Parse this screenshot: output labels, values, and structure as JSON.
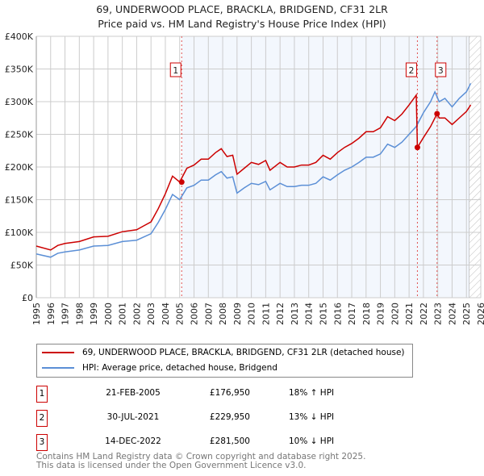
{
  "chart_data": {
    "type": "line",
    "title": "69, UNDERWOOD PLACE, BRACKLA, BRIDGEND, CF31 2LR",
    "subtitle": "Price paid vs. HM Land Registry's House Price Index (HPI)",
    "xlim": [
      1995,
      2026
    ],
    "ylim": [
      0,
      400000
    ],
    "x_ticks": [
      "1995",
      "1996",
      "1997",
      "1998",
      "1999",
      "2000",
      "2001",
      "2002",
      "2003",
      "2004",
      "2005",
      "2006",
      "2007",
      "2008",
      "2009",
      "2010",
      "2011",
      "2012",
      "2013",
      "2014",
      "2015",
      "2016",
      "2017",
      "2018",
      "2019",
      "2020",
      "2021",
      "2022",
      "2023",
      "2024",
      "2025",
      "2026"
    ],
    "y_ticks": [
      {
        "v": 0,
        "label": "£0"
      },
      {
        "v": 50000,
        "label": "£50K"
      },
      {
        "v": 100000,
        "label": "£100K"
      },
      {
        "v": 150000,
        "label": "£150K"
      },
      {
        "v": 200000,
        "label": "£200K"
      },
      {
        "v": 250000,
        "label": "£250K"
      },
      {
        "v": 300000,
        "label": "£300K"
      },
      {
        "v": 350000,
        "label": "£350K"
      },
      {
        "v": 400000,
        "label": "£400K"
      }
    ],
    "grid": true,
    "series": [
      {
        "name": "69, UNDERWOOD PLACE, BRACKLA, BRIDGEND, CF31 2LR (detached house)",
        "color": "#cc0000",
        "x": [
          1995,
          1996,
          1996.5,
          1997,
          1998,
          1999,
          2000,
          2001,
          2002,
          2002.5,
          2003,
          2003.5,
          2004,
          2004.5,
          2005,
          2005.5,
          2006,
          2006.5,
          2007,
          2007.5,
          2007.9,
          2008.3,
          2008.7,
          2009,
          2009.5,
          2010,
          2010.5,
          2011,
          2011.3,
          2012,
          2012.5,
          2013,
          2013.5,
          2014,
          2014.5,
          2015,
          2015.5,
          2016,
          2016.5,
          2017,
          2017.5,
          2018,
          2018.5,
          2019,
          2019.5,
          2020,
          2020.5,
          2021,
          2021.5,
          2021.58,
          2022,
          2022.5,
          2022.95,
          2023.1,
          2023.5,
          2024,
          2024.5,
          2025,
          2025.3
        ],
        "y": [
          79000,
          73000,
          80000,
          83000,
          86000,
          93000,
          94000,
          101000,
          104000,
          110000,
          116000,
          136000,
          159000,
          186000,
          177000,
          198000,
          203000,
          212000,
          212000,
          222000,
          228000,
          216000,
          218000,
          189000,
          198000,
          207000,
          204000,
          210000,
          195000,
          207000,
          200000,
          200000,
          203000,
          203000,
          207000,
          218000,
          212000,
          222000,
          230000,
          236000,
          244000,
          254000,
          254000,
          260000,
          277000,
          271000,
          281000,
          295000,
          310000,
          229950,
          245000,
          262000,
          281500,
          275000,
          275000,
          265000,
          275000,
          285000,
          295000
        ]
      },
      {
        "name": "HPI: Average price, detached house, Bridgend",
        "color": "#5b8fd6",
        "x": [
          1995,
          1996,
          1996.5,
          1997,
          1998,
          1999,
          2000,
          2001,
          2002,
          2002.5,
          2003,
          2003.5,
          2004,
          2004.5,
          2005,
          2005.5,
          2006,
          2006.5,
          2007,
          2007.5,
          2007.9,
          2008.3,
          2008.7,
          2009,
          2009.5,
          2010,
          2010.5,
          2011,
          2011.3,
          2012,
          2012.5,
          2013,
          2013.5,
          2014,
          2014.5,
          2015,
          2015.5,
          2016,
          2016.5,
          2017,
          2017.5,
          2018,
          2018.5,
          2019,
          2019.5,
          2020,
          2020.5,
          2021,
          2021.5,
          2022,
          2022.5,
          2022.8,
          2023.1,
          2023.5,
          2024,
          2024.5,
          2025,
          2025.3
        ],
        "y": [
          67000,
          62000,
          68000,
          70000,
          73000,
          79000,
          80000,
          86000,
          88000,
          93000,
          98000,
          115000,
          135000,
          158000,
          150000,
          168000,
          172000,
          180000,
          180000,
          188000,
          193000,
          183000,
          185000,
          160000,
          168000,
          175000,
          173000,
          178000,
          165000,
          175000,
          170000,
          170000,
          172000,
          172000,
          175000,
          185000,
          180000,
          188000,
          195000,
          200000,
          207000,
          215000,
          215000,
          220000,
          235000,
          230000,
          238000,
          250000,
          262000,
          283000,
          300000,
          315000,
          300000,
          305000,
          292000,
          305000,
          315000,
          328000
        ]
      }
    ],
    "sales": [
      {
        "id": "1",
        "x": 2005.14,
        "date": "21-FEB-2005",
        "price": 176950,
        "price_label": "£176,950",
        "hpi": "18% ↑ HPI"
      },
      {
        "id": "2",
        "x": 2021.58,
        "date": "30-JUL-2021",
        "price": 229950,
        "price_label": "£229,950",
        "hpi": "13% ↓ HPI"
      },
      {
        "id": "3",
        "x": 2022.95,
        "date": "14-DEC-2022",
        "price": 281500,
        "price_label": "£281,500",
        "hpi": "10% ↓ HPI"
      }
    ],
    "shaded_from": 2005.14,
    "forecast_from": 2025.2,
    "legend": "bottom"
  },
  "footer": {
    "line1": "Contains HM Land Registry data © Crown copyright and database right 2025.",
    "line2": "This data is licensed under the Open Government Licence v3.0."
  }
}
